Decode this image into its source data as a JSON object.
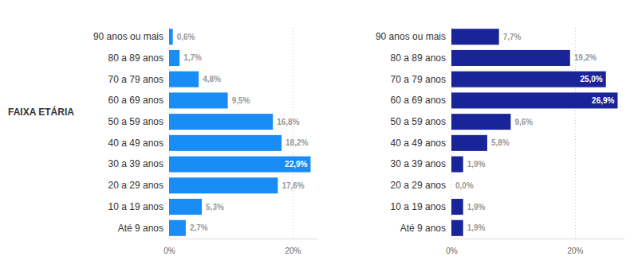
{
  "chart_data": [
    {
      "type": "bar",
      "orientation": "horizontal",
      "ylabel": "FAIXA ETÁRIA",
      "categories": [
        "90 anos ou mais",
        "80 a 89 anos",
        "70 a 79 anos",
        "60 a 69 anos",
        "50 a 59 anos",
        "40 a 49 anos",
        "30 a 39 anos",
        "20 a 29 anos",
        "10 a 19 anos",
        "Até 9 anos"
      ],
      "values": [
        0.6,
        1.7,
        4.8,
        9.5,
        16.8,
        18.2,
        22.9,
        17.6,
        5.3,
        2.7
      ],
      "value_labels": [
        "0,6%",
        "1,7%",
        "4,8%",
        "9,5%",
        "16,8%",
        "18,2%",
        "22,9%",
        "17,6%",
        "5,3%",
        "2,7%"
      ],
      "data_labels": true,
      "color": "#1a8cf5",
      "xlim": [
        0,
        24
      ],
      "xticks": [
        {
          "value": 0,
          "label": "0%"
        },
        {
          "value": 20,
          "label": "20%"
        }
      ],
      "grid": true
    },
    {
      "type": "bar",
      "orientation": "horizontal",
      "categories": [
        "90 anos ou mais",
        "80 a 89 anos",
        "70 a 79 anos",
        "60 a 69 anos",
        "50 a 59 anos",
        "40 a 49 anos",
        "30 a 39 anos",
        "20 a 29 anos",
        "10 a 19 anos",
        "Até 9 anos"
      ],
      "values": [
        7.7,
        19.2,
        25.0,
        26.9,
        9.6,
        5.8,
        1.9,
        0.0,
        1.9,
        1.9
      ],
      "value_labels": [
        "7,7%",
        "19,2%",
        "25,0%",
        "26,9%",
        "9,6%",
        "5,8%",
        "1,9%",
        "0,0%",
        "1,9%",
        "1,9%"
      ],
      "data_labels": true,
      "color": "#1a2499",
      "xlim": [
        0,
        28
      ],
      "xticks": [
        {
          "value": 0,
          "label": "0%"
        },
        {
          "value": 20,
          "label": "20%"
        }
      ],
      "grid": true
    }
  ]
}
